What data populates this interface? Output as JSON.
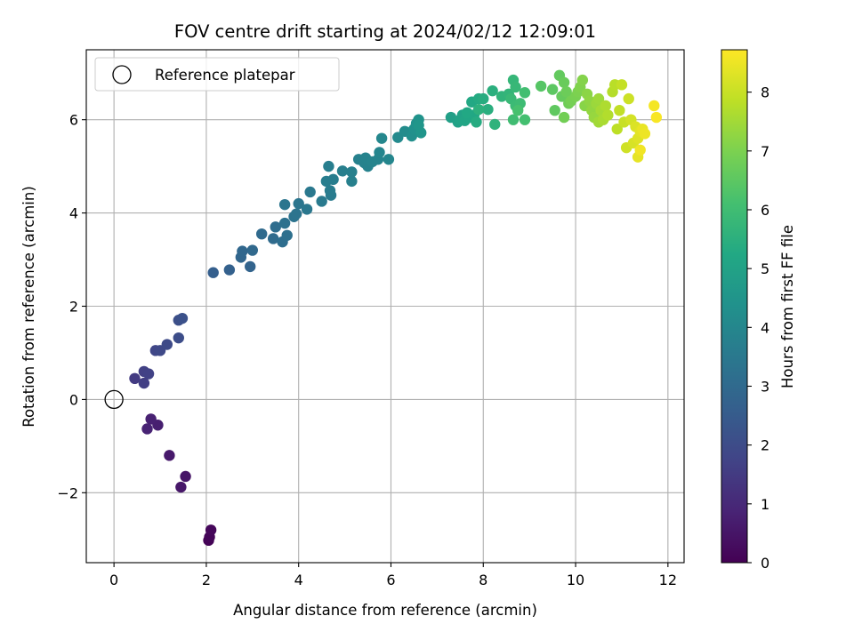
{
  "chart_data": {
    "type": "scatter",
    "title": "FOV centre drift starting at 2024/02/12 12:09:01",
    "xlabel": "Angular distance from reference (arcmin)",
    "ylabel": "Rotation from reference (arcmin)",
    "xlim": [
      -0.6,
      12.35
    ],
    "ylim": [
      -3.5,
      7.5
    ],
    "xticks": [
      0,
      2,
      4,
      6,
      8,
      10,
      12
    ],
    "xtick_labels": [
      "0",
      "2",
      "4",
      "6",
      "8",
      "10",
      "12"
    ],
    "yticks": [
      -2,
      0,
      2,
      4,
      6
    ],
    "ytick_labels": [
      "−2",
      "0",
      "2",
      "4",
      "6"
    ],
    "grid": true,
    "legend": {
      "placement": "upper-left",
      "entries": [
        "Reference platepar"
      ]
    },
    "reference_point": {
      "x": 0,
      "y": 0,
      "marker": "open-circle"
    },
    "colorbar": {
      "label": "Hours from first FF file",
      "colormap": "viridis",
      "range": [
        0,
        8.72
      ],
      "ticks": [
        0,
        1,
        2,
        3,
        4,
        5,
        6,
        7,
        8
      ],
      "tick_labels": [
        "0",
        "1",
        "2",
        "3",
        "4",
        "5",
        "6",
        "7",
        "8"
      ]
    },
    "points": [
      [
        2.05,
        -3.02,
        0.05
      ],
      [
        2.07,
        -2.95,
        0.1
      ],
      [
        2.1,
        -2.8,
        0.15
      ],
      [
        1.55,
        -1.65,
        0.5
      ],
      [
        1.45,
        -1.88,
        0.55
      ],
      [
        1.2,
        -1.2,
        0.6
      ],
      [
        0.95,
        -0.55,
        0.75
      ],
      [
        0.8,
        -0.42,
        0.8
      ],
      [
        0.72,
        -0.63,
        0.85
      ],
      [
        0.45,
        0.45,
        1.5
      ],
      [
        0.65,
        0.35,
        1.6
      ],
      [
        0.65,
        0.6,
        1.65
      ],
      [
        0.75,
        0.55,
        1.7
      ],
      [
        0.9,
        1.05,
        1.85
      ],
      [
        1.0,
        1.05,
        1.9
      ],
      [
        1.15,
        1.18,
        1.95
      ],
      [
        1.4,
        1.32,
        2.05
      ],
      [
        1.4,
        1.7,
        2.1
      ],
      [
        1.48,
        1.74,
        2.15
      ],
      [
        2.15,
        2.72,
        2.6
      ],
      [
        2.5,
        2.78,
        2.7
      ],
      [
        2.95,
        2.85,
        2.8
      ],
      [
        2.75,
        3.05,
        2.85
      ],
      [
        2.78,
        3.18,
        2.9
      ],
      [
        3.0,
        3.2,
        2.95
      ],
      [
        3.2,
        3.55,
        3.0
      ],
      [
        3.45,
        3.45,
        3.05
      ],
      [
        3.5,
        3.7,
        3.1
      ],
      [
        3.65,
        3.38,
        3.15
      ],
      [
        3.75,
        3.52,
        3.2
      ],
      [
        3.7,
        3.78,
        3.25
      ],
      [
        3.9,
        3.92,
        3.3
      ],
      [
        3.95,
        3.98,
        3.35
      ],
      [
        4.0,
        4.2,
        3.4
      ],
      [
        3.7,
        4.18,
        3.38
      ],
      [
        4.18,
        4.08,
        3.45
      ],
      [
        4.25,
        4.45,
        3.5
      ],
      [
        4.5,
        4.25,
        3.55
      ],
      [
        4.7,
        4.38,
        3.6
      ],
      [
        4.68,
        4.48,
        3.62
      ],
      [
        4.6,
        4.68,
        3.65
      ],
      [
        4.75,
        4.72,
        3.67
      ],
      [
        4.65,
        5.0,
        3.7
      ],
      [
        4.95,
        4.9,
        3.72
      ],
      [
        5.15,
        4.68,
        3.75
      ],
      [
        5.15,
        4.88,
        3.77
      ],
      [
        5.3,
        5.15,
        3.8
      ],
      [
        5.42,
        5.08,
        3.82
      ],
      [
        5.5,
        5.0,
        3.85
      ],
      [
        5.45,
        5.18,
        3.88
      ],
      [
        5.6,
        5.1,
        3.9
      ],
      [
        5.72,
        5.15,
        3.92
      ],
      [
        5.75,
        5.3,
        3.95
      ],
      [
        5.95,
        5.15,
        3.97
      ],
      [
        5.8,
        5.6,
        4.0
      ],
      [
        6.15,
        5.62,
        4.1
      ],
      [
        6.3,
        5.75,
        4.2
      ],
      [
        6.45,
        5.65,
        4.3
      ],
      [
        6.5,
        5.8,
        4.35
      ],
      [
        6.55,
        5.92,
        4.4
      ],
      [
        6.6,
        6.0,
        4.45
      ],
      [
        6.65,
        5.72,
        4.5
      ],
      [
        6.6,
        5.88,
        4.55
      ],
      [
        7.3,
        6.05,
        4.9
      ],
      [
        7.45,
        5.95,
        4.95
      ],
      [
        7.55,
        6.1,
        5.0
      ],
      [
        7.5,
        6.0,
        5.05
      ],
      [
        7.6,
        5.98,
        5.1
      ],
      [
        7.7,
        6.05,
        5.15
      ],
      [
        7.8,
        6.1,
        5.2
      ],
      [
        7.65,
        6.15,
        5.22
      ],
      [
        7.75,
        6.38,
        5.25
      ],
      [
        7.9,
        6.45,
        5.3
      ],
      [
        7.85,
        5.95,
        5.35
      ],
      [
        8.0,
        6.45,
        5.4
      ],
      [
        8.1,
        6.22,
        5.45
      ],
      [
        8.2,
        6.62,
        5.5
      ],
      [
        7.9,
        6.22,
        5.55
      ],
      [
        8.25,
        5.9,
        5.6
      ],
      [
        8.4,
        6.5,
        5.65
      ],
      [
        8.55,
        6.55,
        5.7
      ],
      [
        8.65,
        6.85,
        5.75
      ],
      [
        8.7,
        6.7,
        5.8
      ],
      [
        8.6,
        6.45,
        5.85
      ],
      [
        8.7,
        6.3,
        5.9
      ],
      [
        8.8,
        6.35,
        5.95
      ],
      [
        8.65,
        6.0,
        6.0
      ],
      [
        8.9,
        6.58,
        6.05
      ],
      [
        8.9,
        6.0,
        6.1
      ],
      [
        8.75,
        6.2,
        6.15
      ],
      [
        9.25,
        6.72,
        6.4
      ],
      [
        9.5,
        6.65,
        6.5
      ],
      [
        9.55,
        6.2,
        6.55
      ],
      [
        9.65,
        6.95,
        6.6
      ],
      [
        9.7,
        6.5,
        6.65
      ],
      [
        9.75,
        6.8,
        6.7
      ],
      [
        9.8,
        6.6,
        6.75
      ],
      [
        9.85,
        6.35,
        6.8
      ],
      [
        9.75,
        6.05,
        6.85
      ],
      [
        9.9,
        6.4,
        6.9
      ],
      [
        10.0,
        6.5,
        6.95
      ],
      [
        10.05,
        6.6,
        7.0
      ],
      [
        10.1,
        6.7,
        7.05
      ],
      [
        10.15,
        6.85,
        7.1
      ],
      [
        10.2,
        6.3,
        7.15
      ],
      [
        10.25,
        6.55,
        7.2
      ],
      [
        10.3,
        6.4,
        7.25
      ],
      [
        10.35,
        6.2,
        7.3
      ],
      [
        10.4,
        6.05,
        7.35
      ],
      [
        10.45,
        6.35,
        7.4
      ],
      [
        10.5,
        6.45,
        7.45
      ],
      [
        10.5,
        5.95,
        7.5
      ],
      [
        10.55,
        6.2,
        7.55
      ],
      [
        10.6,
        6.0,
        7.6
      ],
      [
        10.65,
        6.3,
        7.65
      ],
      [
        10.7,
        6.1,
        7.7
      ],
      [
        10.8,
        6.6,
        7.75
      ],
      [
        10.85,
        6.75,
        7.8
      ],
      [
        10.9,
        5.8,
        7.85
      ],
      [
        10.95,
        6.2,
        7.9
      ],
      [
        11.0,
        6.75,
        7.95
      ],
      [
        11.05,
        5.95,
        8.0
      ],
      [
        11.15,
        6.45,
        8.05
      ],
      [
        11.1,
        5.4,
        8.1
      ],
      [
        11.2,
        6.0,
        8.15
      ],
      [
        11.25,
        5.5,
        8.2
      ],
      [
        11.3,
        5.85,
        8.25
      ],
      [
        11.35,
        5.6,
        8.3
      ],
      [
        11.4,
        5.75,
        8.35
      ],
      [
        11.35,
        5.2,
        8.4
      ],
      [
        11.45,
        5.8,
        8.45
      ],
      [
        11.5,
        5.7,
        8.5
      ],
      [
        11.4,
        5.35,
        8.55
      ],
      [
        11.7,
        6.3,
        8.6
      ],
      [
        11.75,
        6.05,
        8.65
      ]
    ]
  }
}
